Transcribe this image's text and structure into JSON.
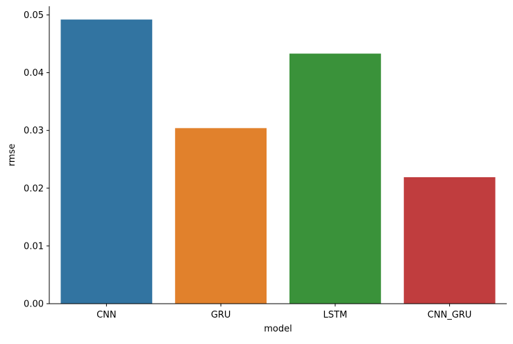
{
  "chart_data": {
    "type": "bar",
    "title": "",
    "xlabel": "model",
    "ylabel": "rmse",
    "categories": [
      "CNN",
      "GRU",
      "LSTM",
      "CNN_GRU"
    ],
    "values": [
      0.0492,
      0.0304,
      0.0433,
      0.0219
    ],
    "colors": [
      "#3274a1",
      "#e1812c",
      "#3a923a",
      "#c03d3e"
    ],
    "ylim": [
      0,
      0.0515
    ],
    "yticks": [
      0.0,
      0.01,
      0.02,
      0.03,
      0.04,
      0.05
    ],
    "ytick_labels": [
      "0.00",
      "0.01",
      "0.02",
      "0.03",
      "0.04",
      "0.05"
    ],
    "grid": false,
    "legend": "none"
  }
}
